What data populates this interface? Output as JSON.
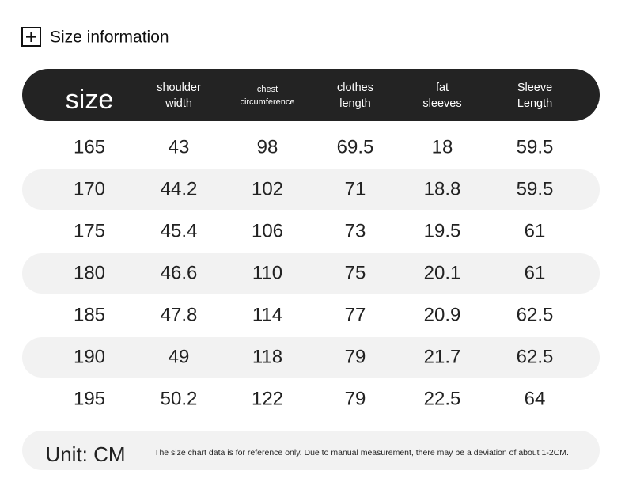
{
  "header": {
    "title": "Size information"
  },
  "table": {
    "columns": [
      [
        "size"
      ],
      [
        "shoulder",
        "width"
      ],
      [
        "chest",
        "circumference"
      ],
      [
        "clothes",
        "length"
      ],
      [
        "fat",
        "sleeves"
      ],
      [
        "Sleeve",
        "Length"
      ]
    ],
    "rows": [
      [
        165,
        43,
        98,
        69.5,
        18,
        59.5
      ],
      [
        170,
        44.2,
        102,
        71,
        18.8,
        59.5
      ],
      [
        175,
        45.4,
        106,
        73,
        19.5,
        61
      ],
      [
        180,
        46.6,
        110,
        75,
        20.1,
        61
      ],
      [
        185,
        47.8,
        114,
        77,
        20.9,
        62.5
      ],
      [
        190,
        49,
        118,
        79,
        21.7,
        62.5
      ],
      [
        195,
        50.2,
        122,
        79,
        22.5,
        64
      ]
    ]
  },
  "footer": {
    "unit": "Unit: CM",
    "note": "The size chart data is for reference only. Due to manual measurement, there may be a deviation of about 1-2CM."
  }
}
